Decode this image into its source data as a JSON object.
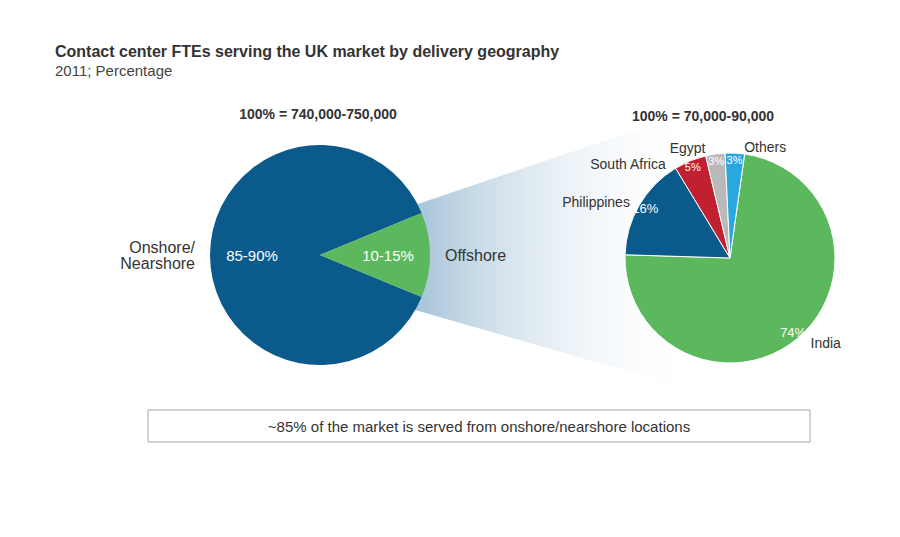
{
  "chart_data": [
    {
      "type": "pie",
      "title": "Contact center FTEs serving the UK market by delivery geography",
      "subtitle": "2011; Percentage",
      "total_label": "100% = 740,000-750,000",
      "annotation": "~85% of the market is served from onshore/nearshore locations",
      "categories": [
        "Onshore/\nNearshore",
        "Offshore"
      ],
      "values": [
        87.5,
        12.5
      ],
      "value_labels": [
        "85-90%",
        "10-15%"
      ],
      "colors": [
        "#0b5a8c",
        "#5cb85c"
      ],
      "data_labels": true
    },
    {
      "type": "pie",
      "total_label": "100% = 70,000-90,000",
      "categories": [
        "India",
        "Philippines",
        "South Africa",
        "Egypt",
        "Others"
      ],
      "values": [
        74,
        16,
        5,
        3,
        3
      ],
      "value_labels": [
        "74%",
        "16%",
        "5%",
        "3%",
        "3%"
      ],
      "colors": [
        "#5cb85c",
        "#0b5a8c",
        "#c0202f",
        "#b9b9b9",
        "#29a8e0"
      ],
      "data_labels": true
    }
  ]
}
